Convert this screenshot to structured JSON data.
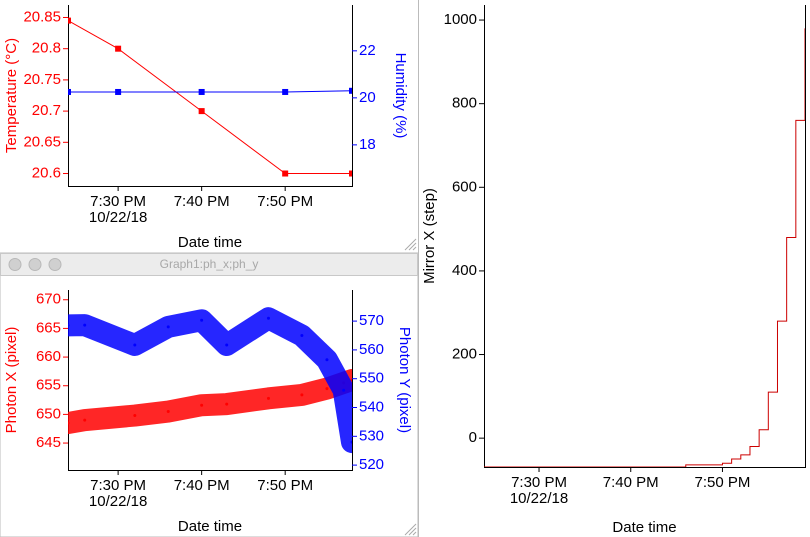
{
  "window_title": "Graph1:ph_x;ph_y",
  "chart_data": [
    {
      "type": "line",
      "x_date_label": "10/22/18",
      "xlabel": "Date time",
      "ylabel": "Temperature (°C)",
      "y2label": "Humidity (%)",
      "y_axis_color": "#ff0000",
      "y2_axis_color": "#0000ff",
      "xlim": [
        "19:24",
        "19:58"
      ],
      "xticks": [
        {
          "value": "19:30",
          "label": "7:30 PM"
        },
        {
          "value": "19:40",
          "label": "7:40 PM"
        },
        {
          "value": "19:50",
          "label": "7:50 PM"
        }
      ],
      "ylim": [
        20.58,
        20.87
      ],
      "yticks": [
        20.6,
        20.65,
        20.7,
        20.75,
        20.8,
        20.85
      ],
      "y2lim": [
        16.25,
        23.95
      ],
      "y2ticks": [
        18,
        20,
        22
      ],
      "x": [
        "19:24",
        "19:30",
        "19:40",
        "19:50",
        "19:58"
      ],
      "series": [
        {
          "name": "Temperature",
          "color": "#ff0000",
          "markers": true,
          "values": [
            20.845,
            20.8,
            20.7,
            20.6,
            20.6
          ]
        },
        {
          "name": "Humidity",
          "color": "#0000ff",
          "markers": true,
          "axis": "y2",
          "values": [
            20.25,
            20.25,
            20.25,
            20.25,
            20.3
          ]
        }
      ]
    },
    {
      "type": "scatter",
      "x_date_label": "10/22/18",
      "xlabel": "Date time",
      "ylabel": "Photon X (pixel)",
      "y2label": "Photon Y (pixel)",
      "y_axis_color": "#ff0000",
      "y2_axis_color": "#0000ff",
      "xlim": [
        "19:24",
        "19:58"
      ],
      "xticks": [
        {
          "value": "19:30",
          "label": "7:30 PM"
        },
        {
          "value": "19:40",
          "label": "7:40 PM"
        },
        {
          "value": "19:50",
          "label": "7:50 PM"
        }
      ],
      "ylim": [
        640.3,
        671.7
      ],
      "yticks": [
        645,
        650,
        655,
        660,
        665,
        670
      ],
      "y2lim": [
        518.3,
        580.8
      ],
      "y2ticks": [
        520,
        530,
        540,
        550,
        560,
        570
      ],
      "x": [
        "19:24",
        "19:26",
        "19:32",
        "19:36",
        "19:40",
        "19:43",
        "19:48",
        "19:52",
        "19:55",
        "19:57",
        "19:58"
      ],
      "series": [
        {
          "name": "ph_x",
          "color": "#ff0000",
          "values": [
            648.5,
            649,
            649.8,
            650.5,
            651.6,
            651.8,
            652.8,
            653.4,
            654.5,
            655.5,
            656
          ]
        },
        {
          "name": "ph_y",
          "color": "#0000ff",
          "axis": "y2",
          "values": [
            568.5,
            568.6,
            561.7,
            568,
            570.3,
            561.7,
            571,
            565,
            556.6,
            546,
            528
          ]
        }
      ]
    },
    {
      "type": "line",
      "step": true,
      "x_date_label": "10/22/18",
      "xlabel": "Date time",
      "ylabel": "Mirror X (step)",
      "y_axis_color": "#000000",
      "xlim": [
        "19:24",
        "19:59"
      ],
      "xticks": [
        {
          "value": "19:30",
          "label": "7:30 PM"
        },
        {
          "value": "19:40",
          "label": "7:40 PM"
        },
        {
          "value": "19:50",
          "label": "7:50 PM"
        }
      ],
      "ylim": [
        -69,
        1036
      ],
      "yticks": [
        0,
        200,
        400,
        600,
        800,
        1000
      ],
      "x": [
        "19:24",
        "19:45",
        "19:46",
        "19:50",
        "19:51",
        "19:52",
        "19:53",
        "19:54",
        "19:55",
        "19:56",
        "19:57",
        "19:58",
        "19:59"
      ],
      "series": [
        {
          "name": "Mirror X",
          "color": "#cc0000",
          "values": [
            -69,
            -69,
            -64,
            -60,
            -50,
            -40,
            -20,
            20,
            110,
            280,
            480,
            760,
            980
          ]
        }
      ]
    }
  ]
}
